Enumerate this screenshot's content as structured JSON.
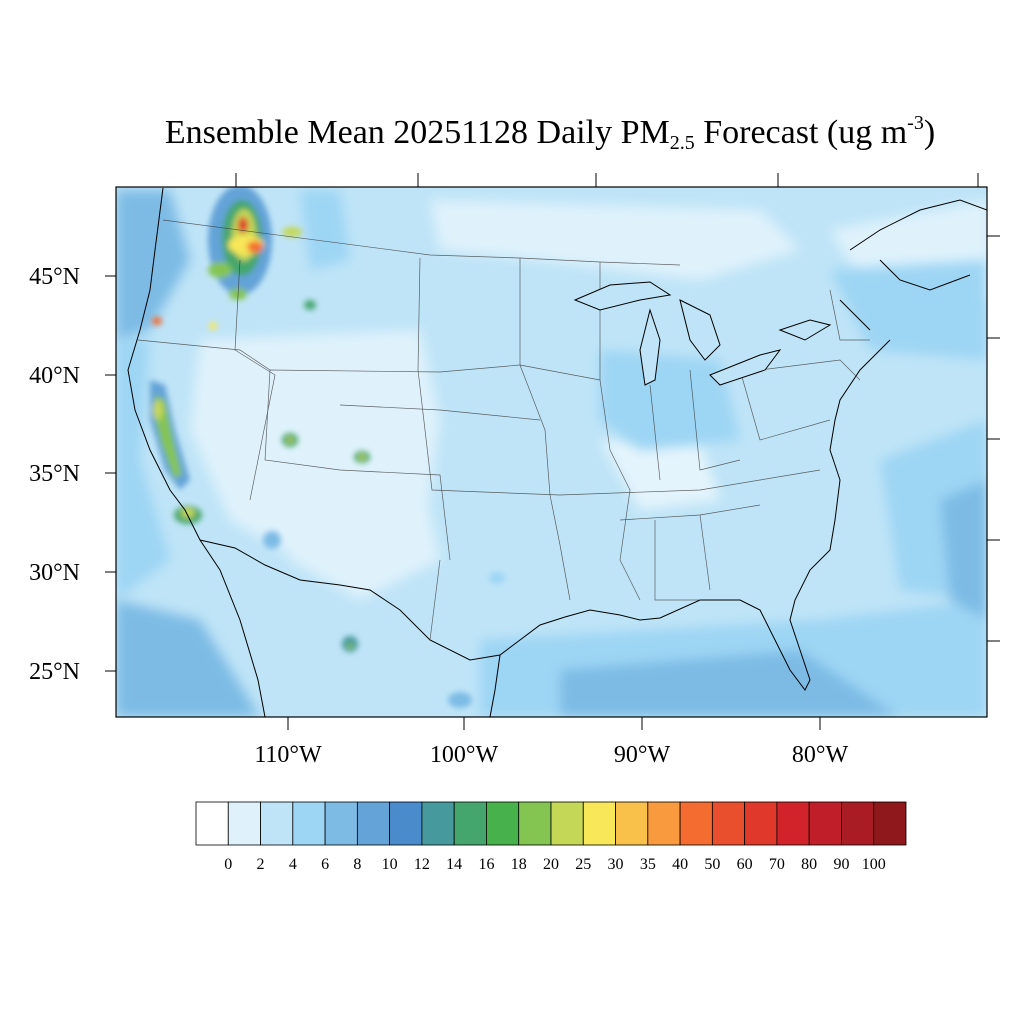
{
  "title": {
    "prefix": "Ensemble Mean 20251128 Daily PM",
    "subscript": "2.5",
    "middle": " Forecast (ug m",
    "superscript": "-3",
    "suffix": ")"
  },
  "map": {
    "projection": "lambert-conformal",
    "region": "CONUS",
    "lat_labels": [
      "45°N",
      "40°N",
      "35°N",
      "30°N",
      "25°N"
    ],
    "lon_labels": [
      "110°W",
      "100°W",
      "90°W",
      "80°W"
    ],
    "background_color": "#bfe4f7",
    "hotspots": [
      {
        "name": "n-idaho-montana",
        "peak": 80
      },
      {
        "name": "central-valley-ca",
        "peak": 25
      },
      {
        "name": "southern-ca",
        "peak": 25
      },
      {
        "name": "w-oregon",
        "peak": 40
      },
      {
        "name": "c-oregon",
        "peak": 25
      },
      {
        "name": "w-montana",
        "peak": 20
      },
      {
        "name": "utah-valley",
        "peak": 25
      },
      {
        "name": "colorado-sw",
        "peak": 20
      },
      {
        "name": "n-mexico-durango",
        "peak": 20
      }
    ]
  },
  "colorbar": {
    "labels": [
      "0",
      "2",
      "4",
      "6",
      "8",
      "10",
      "12",
      "14",
      "16",
      "18",
      "20",
      "25",
      "30",
      "35",
      "40",
      "50",
      "60",
      "70",
      "80",
      "90",
      "100"
    ],
    "colors": [
      "#ffffff",
      "#dff2fc",
      "#bfe4f7",
      "#9dd5f4",
      "#7dbbe5",
      "#64a3d8",
      "#4a8ccb",
      "#46999c",
      "#45a66d",
      "#47b24b",
      "#84c551",
      "#c4d756",
      "#f7e759",
      "#f9c04a",
      "#f89a3d",
      "#f46c2f",
      "#e94e2d",
      "#e0392b",
      "#d2232b",
      "#c01e28",
      "#a91c23",
      "#8e181c"
    ]
  }
}
